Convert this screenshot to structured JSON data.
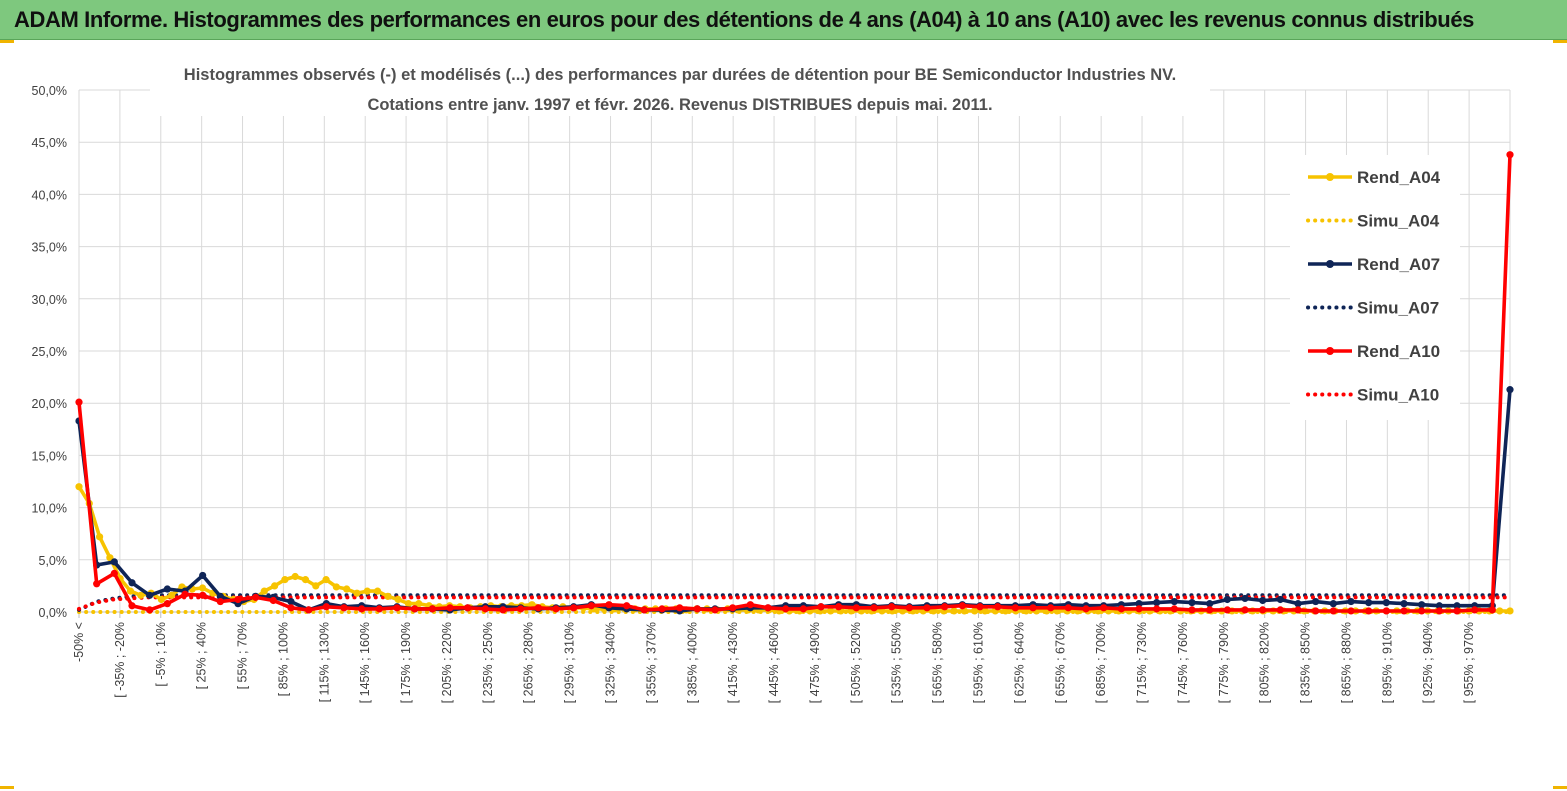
{
  "banner": {
    "title": "ADAM Informe. Histogrammes des performances en euros pour des détentions de 4 ans (A04) à 10 ans (A10) avec les revenus connus distribués"
  },
  "colors": {
    "banner": "#7ec87e",
    "a04": "#f7c300",
    "a07": "#0f2557",
    "a10": "#ff0000",
    "grid": "#d9d9d9"
  },
  "chart_data": {
    "type": "line",
    "title": [
      "Histogrammes observés (-)  et modélisés (...) des performances par durées de détention pour BE Semiconductor Industries NV.",
      "Cotations entre janv. 1997 et févr. 2026. Revenus DISTRIBUES depuis mai. 2011."
    ],
    "xlabel": "",
    "ylabel": "",
    "ylim": [
      0,
      0.5
    ],
    "yticks": [
      "0,0%",
      "5,0%",
      "10,0%",
      "15,0%",
      "20,0%",
      "25,0%",
      "30,0%",
      "35,0%",
      "40,0%",
      "45,0%",
      "50,0%"
    ],
    "grid": true,
    "legend_position": "right",
    "x_tick_labels": [
      "-50% <",
      "[ -35% ; -20%",
      "[ -5% ; 10%",
      "[ 25% ; 40%",
      "[ 55% ; 70%",
      "[ 85% ; 100%",
      "[ 115% ; 130%",
      "[ 145% ; 160%",
      "[ 175% ; 190%",
      "[ 205% ; 220%",
      "[ 235% ; 250%",
      "[ 265% ; 280%",
      "[ 295% ; 310%",
      "[ 325% ; 340%",
      "[ 355% ; 370%",
      "[ 385% ; 400%",
      "[ 415% ; 430%",
      "[ 445% ; 460%",
      "[ 475% ; 490%",
      "[ 505% ; 520%",
      "[ 535% ; 550%",
      "[ 565% ; 580%",
      "[ 595% ; 610%",
      "[ 625% ; 640%",
      "[ 655% ; 670%",
      "[ 685% ; 700%",
      "[ 715% ; 730%",
      "[ 745% ; 760%",
      "[ 775% ; 790%",
      "[ 805% ; 820%",
      "[ 835% ; 850%",
      "[ 865% ; 880%",
      "[ 895% ; 910%",
      "[ 925% ; 940%",
      "[ 955% ; 970%"
    ],
    "series": [
      {
        "name": "Rend_A04",
        "style": "solid",
        "color": "#f7c300",
        "values": [
          0.12,
          0.104,
          0.072,
          0.052,
          0.032,
          0.02,
          0.016,
          0.018,
          0.012,
          0.016,
          0.024,
          0.022,
          0.023,
          0.018,
          0.015,
          0.012,
          0.01,
          0.012,
          0.02,
          0.025,
          0.031,
          0.034,
          0.031,
          0.025,
          0.031,
          0.024,
          0.022,
          0.018,
          0.02,
          0.02,
          0.015,
          0.012,
          0.008,
          0.008,
          0.006,
          0.005,
          0.006,
          0.005,
          0.004,
          0.005,
          0.006,
          0.005,
          0.006,
          0.006,
          0.007,
          0.005,
          0.004,
          0.005,
          0.004,
          0.004,
          0.003,
          0.003,
          0.003,
          0.003,
          0.003,
          0.003,
          0.003,
          0.003,
          0.003,
          0.002,
          0.003,
          0.003,
          0.002,
          0.003,
          0.002,
          0.002,
          0.002,
          0.002,
          0.001,
          0.001,
          0.001,
          0.001,
          0.001,
          0.001,
          0.001,
          0.001,
          0.001,
          0.001,
          0.001,
          0.001,
          0.001,
          0.001,
          0.001,
          0.001,
          0.001,
          0.001,
          0.001,
          0.001,
          0.001,
          0.001,
          0.001,
          0.001,
          0.001,
          0.001,
          0.001,
          0.001,
          0.001,
          0.001,
          0.001,
          0.001,
          0.001,
          0.001,
          0.001,
          0.001,
          0.001,
          0.001,
          0.001,
          0.001,
          0.001,
          0.001,
          0.001,
          0.001,
          0.001,
          0.001,
          0.001,
          0.001,
          0.001,
          0.001,
          0.001,
          0.001,
          0.001,
          0.001,
          0.001,
          0.001,
          0.001,
          0.001,
          0.001,
          0.001,
          0.001,
          0.001,
          0.001,
          0.001,
          0.001,
          0.001,
          0.001,
          0.001,
          0.001,
          0.001,
          0.001,
          0.001
        ]
      },
      {
        "name": "Simu_A04",
        "style": "dotted",
        "color": "#f7c300",
        "values": [
          0.0,
          0.0,
          0.0,
          0.0,
          0.0,
          0.0,
          0.0,
          0.0,
          0.0,
          0.0,
          0.0,
          0.0,
          0.0,
          0.0,
          0.0,
          0.0,
          0.0,
          0.0,
          0.0,
          0.0,
          0.0,
          0.0,
          0.0,
          0.0,
          0.0,
          0.0,
          0.0,
          0.0,
          0.0,
          0.0,
          0.0,
          0.0,
          0.0,
          0.0,
          0.0,
          0.0,
          0.0,
          0.0,
          0.0,
          0.0,
          0.0,
          0.0,
          0.0,
          0.0,
          0.0,
          0.0,
          0.0,
          0.0,
          0.0,
          0.0,
          0.0,
          0.0,
          0.0,
          0.0,
          0.0,
          0.0,
          0.0,
          0.0,
          0.0,
          0.0,
          0.0,
          0.0,
          0.0,
          0.0,
          0.0,
          0.0,
          0.0,
          0.0,
          0.0,
          0.0,
          0.0
        ]
      },
      {
        "name": "Rend_A07",
        "style": "solid",
        "color": "#0f2557",
        "values": [
          0.183,
          0.045,
          0.048,
          0.028,
          0.016,
          0.022,
          0.02,
          0.035,
          0.015,
          0.008,
          0.015,
          0.014,
          0.01,
          0.002,
          0.008,
          0.005,
          0.006,
          0.004,
          0.005,
          0.003,
          0.003,
          0.002,
          0.004,
          0.005,
          0.005,
          0.004,
          0.003,
          0.004,
          0.005,
          0.007,
          0.004,
          0.003,
          0.002,
          0.002,
          0.001,
          0.003,
          0.003,
          0.003,
          0.004,
          0.004,
          0.006,
          0.006,
          0.005,
          0.007,
          0.007,
          0.005,
          0.006,
          0.005,
          0.006,
          0.006,
          0.007,
          0.006,
          0.006,
          0.006,
          0.007,
          0.006,
          0.007,
          0.006,
          0.006,
          0.007,
          0.008,
          0.009,
          0.01,
          0.009,
          0.008,
          0.012,
          0.013,
          0.011,
          0.012,
          0.008,
          0.01,
          0.008,
          0.01,
          0.009,
          0.009,
          0.008,
          0.007,
          0.006,
          0.006,
          0.006,
          0.006,
          0.213
        ]
      },
      {
        "name": "Simu_A07",
        "style": "dotted",
        "color": "#0f2557",
        "values": [
          0.002,
          0.01,
          0.013,
          0.015,
          0.016,
          0.016,
          0.016,
          0.016,
          0.016,
          0.016,
          0.016,
          0.016,
          0.016,
          0.016,
          0.016,
          0.016,
          0.016,
          0.016,
          0.016,
          0.016,
          0.016,
          0.016,
          0.016,
          0.016,
          0.016,
          0.016,
          0.016,
          0.016,
          0.016,
          0.016,
          0.016,
          0.016,
          0.016,
          0.016,
          0.016,
          0.016,
          0.016,
          0.016,
          0.016,
          0.016,
          0.016,
          0.016,
          0.016,
          0.016,
          0.016,
          0.016,
          0.016,
          0.016,
          0.016,
          0.016,
          0.016,
          0.016,
          0.016,
          0.016,
          0.016,
          0.016,
          0.016,
          0.016,
          0.016,
          0.016,
          0.016,
          0.016,
          0.016,
          0.016,
          0.016,
          0.016,
          0.016,
          0.016,
          0.016,
          0.016,
          0.016,
          0.016,
          0.016,
          0.016,
          0.016,
          0.016,
          0.016,
          0.016,
          0.016,
          0.016,
          0.016,
          0.016
        ]
      },
      {
        "name": "Rend_A10",
        "style": "solid",
        "color": "#ff0000",
        "values": [
          0.201,
          0.027,
          0.037,
          0.006,
          0.002,
          0.008,
          0.017,
          0.016,
          0.01,
          0.012,
          0.014,
          0.011,
          0.004,
          0.002,
          0.005,
          0.004,
          0.003,
          0.003,
          0.004,
          0.003,
          0.003,
          0.004,
          0.004,
          0.003,
          0.002,
          0.003,
          0.004,
          0.003,
          0.004,
          0.006,
          0.007,
          0.006,
          0.002,
          0.003,
          0.004,
          0.003,
          0.002,
          0.004,
          0.007,
          0.004,
          0.003,
          0.003,
          0.005,
          0.005,
          0.004,
          0.004,
          0.005,
          0.004,
          0.004,
          0.005,
          0.006,
          0.005,
          0.005,
          0.004,
          0.004,
          0.004,
          0.004,
          0.003,
          0.004,
          0.003,
          0.003,
          0.003,
          0.003,
          0.002,
          0.002,
          0.002,
          0.002,
          0.002,
          0.002,
          0.002,
          0.001,
          0.001,
          0.001,
          0.001,
          0.001,
          0.001,
          0.001,
          0.001,
          0.001,
          0.002,
          0.002,
          0.438
        ]
      },
      {
        "name": "Simu_A10",
        "style": "dotted",
        "color": "#ff0000",
        "values": [
          0.003,
          0.009,
          0.012,
          0.013,
          0.014,
          0.014,
          0.014,
          0.014,
          0.014,
          0.014,
          0.014,
          0.014,
          0.014,
          0.014,
          0.014,
          0.014,
          0.014,
          0.014,
          0.014,
          0.014,
          0.014,
          0.014,
          0.014,
          0.014,
          0.014,
          0.014,
          0.014,
          0.014,
          0.014,
          0.014,
          0.014,
          0.014,
          0.014,
          0.014,
          0.014,
          0.014,
          0.014,
          0.014,
          0.014,
          0.014,
          0.014,
          0.014,
          0.014,
          0.014,
          0.014,
          0.014,
          0.014,
          0.014,
          0.014,
          0.014,
          0.014,
          0.014,
          0.014,
          0.014,
          0.014,
          0.014,
          0.014,
          0.014,
          0.014,
          0.014,
          0.014,
          0.014,
          0.014,
          0.014,
          0.014,
          0.014,
          0.014,
          0.014,
          0.014,
          0.014,
          0.014,
          0.014,
          0.014,
          0.014,
          0.014,
          0.014,
          0.014,
          0.014,
          0.014,
          0.014,
          0.014,
          0.014,
          0.014,
          0.014,
          0.014
        ]
      }
    ]
  }
}
